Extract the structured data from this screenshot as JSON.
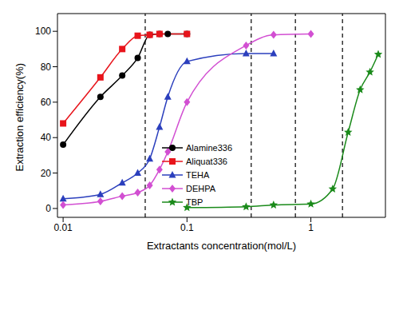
{
  "chart_data": {
    "type": "line",
    "x_label": "Extractants concentration(mol/L)",
    "y_label": "Extraction efficiency(%)",
    "log": "x",
    "xlim": [
      0.009,
      4
    ],
    "xticks": [
      0.01,
      0.1,
      1
    ],
    "ylim": [
      -5,
      110
    ],
    "yticks": [
      0,
      20,
      40,
      60,
      80,
      100
    ],
    "grid": false,
    "legend": "center",
    "reference_lines": [
      0.046,
      0.33,
      0.75,
      1.8
    ],
    "series": [
      {
        "name": "Alamine336",
        "color": "#000000",
        "marker": "circle",
        "line_style": "solid",
        "x": [
          0.01,
          0.02,
          0.03,
          0.04,
          0.05,
          0.06,
          0.07,
          0.1
        ],
        "values": [
          36,
          63,
          75,
          85,
          98,
          98.5,
          98.5,
          98.5
        ]
      },
      {
        "name": "Aliquat336",
        "color": "#e8141b",
        "marker": "square",
        "line_style": "solid",
        "x": [
          0.01,
          0.02,
          0.03,
          0.04,
          0.05,
          0.06,
          0.1
        ],
        "values": [
          48,
          74,
          90,
          97.5,
          98,
          98.5,
          98.5
        ]
      },
      {
        "name": "TEHA",
        "color": "#2b3fbd",
        "marker": "triangle",
        "line_style": "solid",
        "x": [
          0.01,
          0.02,
          0.03,
          0.04,
          0.05,
          0.06,
          0.07,
          0.1,
          0.3,
          0.5
        ],
        "values": [
          5.5,
          8,
          14.5,
          20,
          28,
          46,
          63,
          83,
          87.5,
          87.5
        ]
      },
      {
        "name": "DEHPA",
        "color": "#d24fd2",
        "marker": "diamond",
        "line_style": "solid",
        "x": [
          0.01,
          0.02,
          0.03,
          0.04,
          0.05,
          0.06,
          0.07,
          0.1,
          0.3,
          0.5,
          1
        ],
        "values": [
          2,
          4,
          7,
          9,
          13,
          22,
          32,
          60,
          92,
          98,
          98.5
        ]
      },
      {
        "name": "TBP",
        "color": "#1a8a1a",
        "marker": "star",
        "line_style": "solid",
        "x": [
          0.1,
          0.3,
          0.5,
          1,
          1.5,
          2,
          2.5,
          3,
          3.5
        ],
        "values": [
          0.5,
          1,
          2,
          2.5,
          11,
          43,
          67,
          77,
          87
        ]
      }
    ]
  }
}
